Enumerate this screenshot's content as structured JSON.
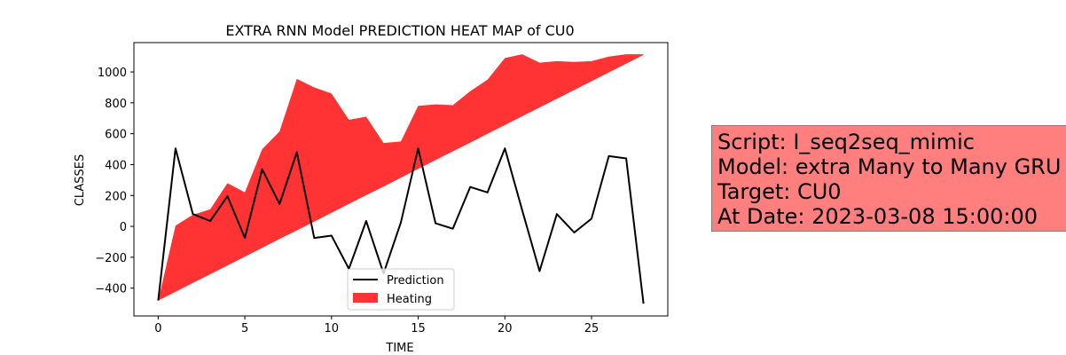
{
  "chart_data": {
    "type": "area",
    "title": "EXTRA RNN Model PREDICTION HEAT MAP of CU0",
    "xlabel": "TIME",
    "ylabel": "CLASSES",
    "xlim": [
      -1.4,
      29.4
    ],
    "ylim": [
      -580,
      1190
    ],
    "xticks": [
      0,
      5,
      10,
      15,
      20,
      25
    ],
    "yticks": [
      -400,
      -200,
      0,
      200,
      400,
      600,
      800,
      1000
    ],
    "x": [
      0,
      1,
      2,
      3,
      4,
      5,
      6,
      7,
      8,
      9,
      10,
      11,
      12,
      13,
      14,
      15,
      16,
      17,
      18,
      19,
      20,
      21,
      22,
      23,
      24,
      25,
      26,
      27,
      28
    ],
    "series": [
      {
        "name": "Prediction",
        "kind": "line",
        "color": "#000000",
        "values": [
          -480,
          505,
          80,
          35,
          195,
          -75,
          370,
          145,
          480,
          -75,
          -60,
          -275,
          35,
          -305,
          25,
          505,
          20,
          -15,
          255,
          220,
          505,
          105,
          -290,
          80,
          -40,
          50,
          455,
          440,
          -500
        ]
      },
      {
        "name": "Heating",
        "kind": "fill_between",
        "color": "#ff0000",
        "opacity": 0.8,
        "lower": [
          -480,
          -423,
          -366,
          -310,
          -253,
          -196,
          -139,
          -82,
          -26,
          31,
          88,
          145,
          202,
          258,
          315,
          372,
          429,
          486,
          542,
          599,
          656,
          713,
          770,
          826,
          883,
          940,
          997,
          1054,
          1110
        ],
        "upper": [
          -480,
          5,
          75,
          110,
          280,
          220,
          500,
          615,
          955,
          900,
          860,
          690,
          710,
          540,
          550,
          780,
          790,
          785,
          875,
          950,
          1090,
          1115,
          1060,
          1070,
          1065,
          1070,
          1100,
          1115,
          1115
        ]
      }
    ],
    "legend": {
      "position": "lower center"
    },
    "grid": false
  },
  "info_box": {
    "lines": [
      "Script: I_seq2seq_mimic",
      "Model: extra Many to Many GRU",
      "Target: CU0",
      "At Date: 2023-03-08 15:00:00"
    ],
    "background": "#ff7f7f"
  }
}
